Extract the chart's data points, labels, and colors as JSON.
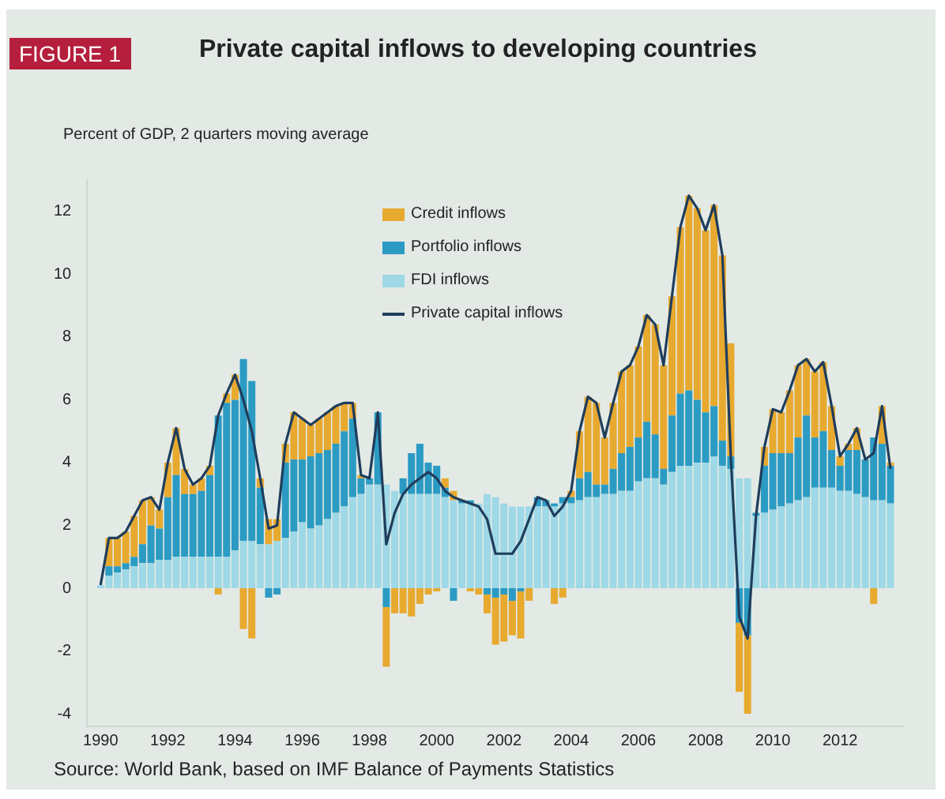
{
  "chart_data": {
    "type": "bar",
    "title": "Private capital inflows to developing countries",
    "ylabel": "Percent of GDP, 2 quarters moving average",
    "annotations": [
      "FIGURE 1",
      "Source: World Bank, based on IMF Balance of Payments Statistics"
    ],
    "stacked": true,
    "legend": "top",
    "grid": false,
    "marker": "none",
    "x": [
      1990,
      1990.25,
      1990.5,
      1990.75,
      1991,
      1991.25,
      1991.5,
      1991.75,
      1992,
      1992.25,
      1992.5,
      1992.75,
      1993,
      1993.25,
      1993.5,
      1993.75,
      1994,
      1994.25,
      1994.5,
      1994.75,
      1995,
      1995.25,
      1995.5,
      1995.75,
      1996,
      1996.25,
      1996.5,
      1996.75,
      1997,
      1997.25,
      1997.5,
      1997.75,
      1998,
      1998.25,
      1998.5,
      1998.75,
      1999,
      1999.25,
      1999.5,
      1999.75,
      2000,
      2000.25,
      2000.5,
      2000.75,
      2001,
      2001.25,
      2001.5,
      2001.75,
      2002,
      2002.25,
      2002.5,
      2002.75,
      2003,
      2003.25,
      2003.5,
      2003.75,
      2004,
      2004.25,
      2004.5,
      2004.75,
      2005,
      2005.25,
      2005.5,
      2005.75,
      2006,
      2006.25,
      2006.5,
      2006.75,
      2007,
      2007.25,
      2007.5,
      2007.75,
      2008,
      2008.25,
      2008.5,
      2008.75,
      2009,
      2009.25,
      2009.5,
      2009.75,
      2010,
      2010.25,
      2010.5,
      2010.75,
      2011,
      2011.25,
      2011.5,
      2011.75,
      2012,
      2012.25,
      2012.5,
      2012.75,
      2013,
      2013.25,
      2013.5
    ],
    "xlim": [
      1989.6,
      2013.9
    ],
    "xticks": [
      1990,
      1992,
      1994,
      1996,
      1998,
      2000,
      2002,
      2004,
      2006,
      2008,
      2010,
      2012
    ],
    "ylim": [
      -4.4,
      13
    ],
    "yticks": [
      -4,
      -2,
      0,
      2,
      4,
      6,
      8,
      10,
      12
    ],
    "series": [
      {
        "name": "FDI inflows",
        "color": "#9fd8e6",
        "values": [
          0.1,
          0.4,
          0.5,
          0.6,
          0.7,
          0.8,
          0.8,
          0.9,
          0.9,
          1.0,
          1.0,
          1.0,
          1.0,
          1.0,
          1.0,
          1.0,
          1.2,
          1.5,
          1.5,
          1.4,
          1.4,
          1.5,
          1.6,
          1.8,
          2.1,
          1.9,
          2.0,
          2.2,
          2.4,
          2.6,
          2.9,
          3.0,
          3.3,
          3.3,
          3.3,
          3.1,
          3.0,
          3.0,
          3.0,
          3.0,
          3.0,
          2.9,
          2.8,
          2.7,
          2.7,
          2.7,
          3.0,
          2.9,
          2.7,
          2.6,
          2.6,
          2.6,
          2.6,
          2.6,
          2.6,
          2.7,
          2.7,
          2.8,
          2.9,
          2.9,
          3.0,
          3.0,
          3.1,
          3.1,
          3.4,
          3.5,
          3.5,
          3.3,
          3.7,
          3.9,
          3.9,
          4.0,
          4.0,
          4.2,
          3.9,
          3.8,
          3.5,
          3.5,
          2.3,
          2.4,
          2.5,
          2.6,
          2.7,
          2.8,
          2.9,
          3.2,
          3.2,
          3.2,
          3.1,
          3.1,
          3.0,
          2.9,
          2.8,
          2.8,
          2.7
        ]
      },
      {
        "name": "Portfolio inflows",
        "color": "#2b9bc4",
        "values": [
          0,
          0.3,
          0.2,
          0.2,
          0.3,
          0.6,
          1.2,
          1.0,
          2.0,
          2.6,
          2.0,
          2.0,
          2.1,
          2.6,
          4.5,
          4.9,
          4.8,
          5.8,
          5.1,
          1.8,
          -0.3,
          -0.2,
          2.4,
          2.3,
          2.0,
          2.3,
          2.3,
          2.2,
          2.2,
          2.4,
          2.5,
          0.5,
          0.2,
          2.3,
          -0.6,
          0,
          0.5,
          1.3,
          1.6,
          1.0,
          0.9,
          0.3,
          -0.4,
          0.1,
          0.1,
          0,
          -0.2,
          -0.3,
          -0.2,
          -0.4,
          -0.1,
          0,
          0.3,
          0.2,
          0.1,
          0.2,
          0.2,
          0.7,
          0.8,
          0.4,
          0.3,
          0.8,
          1.2,
          1.4,
          1.4,
          1.8,
          1.4,
          0.5,
          1.8,
          2.3,
          2.4,
          2.0,
          1.6,
          1.6,
          0.8,
          0.4,
          -1.1,
          -1.5,
          0.1,
          1.5,
          1.8,
          1.7,
          1.6,
          2.0,
          2.6,
          1.6,
          1.8,
          1.2,
          0.8,
          1.3,
          1.4,
          1.2,
          2.0,
          1.8,
          1.2
        ]
      },
      {
        "name": "Credit inflows",
        "color": "#e8a92f",
        "values": [
          0,
          0.9,
          0.9,
          1.0,
          1.3,
          1.4,
          0.9,
          0.6,
          1.1,
          1.5,
          0.8,
          0.3,
          0.4,
          0.3,
          -0.2,
          0.3,
          0.8,
          -1.3,
          -1.6,
          0.3,
          0.8,
          0.7,
          0.6,
          1.5,
          1.3,
          1.0,
          1.1,
          1.2,
          1.2,
          0.9,
          0.5,
          0.1,
          0,
          0,
          -1.9,
          -0.8,
          -0.8,
          -0.9,
          -0.5,
          -0.2,
          -0.1,
          0.3,
          0.3,
          null,
          -0.1,
          -0.2,
          -0.6,
          -1.5,
          -1.5,
          -1.1,
          -1.5,
          -0.4,
          0,
          null,
          -0.5,
          -0.3,
          0.2,
          1.5,
          2.4,
          2.6,
          1.5,
          2.1,
          2.6,
          2.6,
          2.9,
          3.4,
          3.5,
          3.3,
          3.8,
          5.3,
          6.2,
          6.1,
          5.8,
          6.4,
          5.9,
          3.6,
          -2.2,
          -2.5,
          0,
          0.6,
          1.4,
          1.3,
          2.0,
          2.3,
          1.8,
          2.1,
          2.2,
          1.4,
          0.3,
          0.2,
          0.7,
          0,
          -0.5,
          1.2,
          0.1
        ]
      },
      {
        "name": "Private capital inflows",
        "type": "line",
        "color": "#1f3d5c",
        "values": [
          0.1,
          1.6,
          1.6,
          1.8,
          2.3,
          2.8,
          2.9,
          2.5,
          4.0,
          5.1,
          3.8,
          3.3,
          3.5,
          3.9,
          5.5,
          6.2,
          6.8,
          6.0,
          5.0,
          3.5,
          1.9,
          2.0,
          4.6,
          5.6,
          5.4,
          5.2,
          5.4,
          5.6,
          5.8,
          5.9,
          5.9,
          3.6,
          3.5,
          5.6,
          1.4,
          2.4,
          3.0,
          3.3,
          3.5,
          3.7,
          3.5,
          3.1,
          2.9,
          2.8,
          2.7,
          2.6,
          2.2,
          1.1,
          1.1,
          1.1,
          1.5,
          2.2,
          2.9,
          2.8,
          2.3,
          2.6,
          3.1,
          5.0,
          6.1,
          5.9,
          4.8,
          5.9,
          6.9,
          7.1,
          7.7,
          8.7,
          8.4,
          7.1,
          9.3,
          11.5,
          12.5,
          12.1,
          11.4,
          12.2,
          10.6,
          4.2,
          -0.9,
          -1.6,
          2.3,
          4.5,
          5.7,
          5.6,
          6.3,
          7.1,
          7.3,
          6.9,
          7.2,
          5.8,
          4.2,
          4.6,
          5.1,
          4.1,
          4.3,
          5.8,
          3.8
        ]
      }
    ]
  }
}
